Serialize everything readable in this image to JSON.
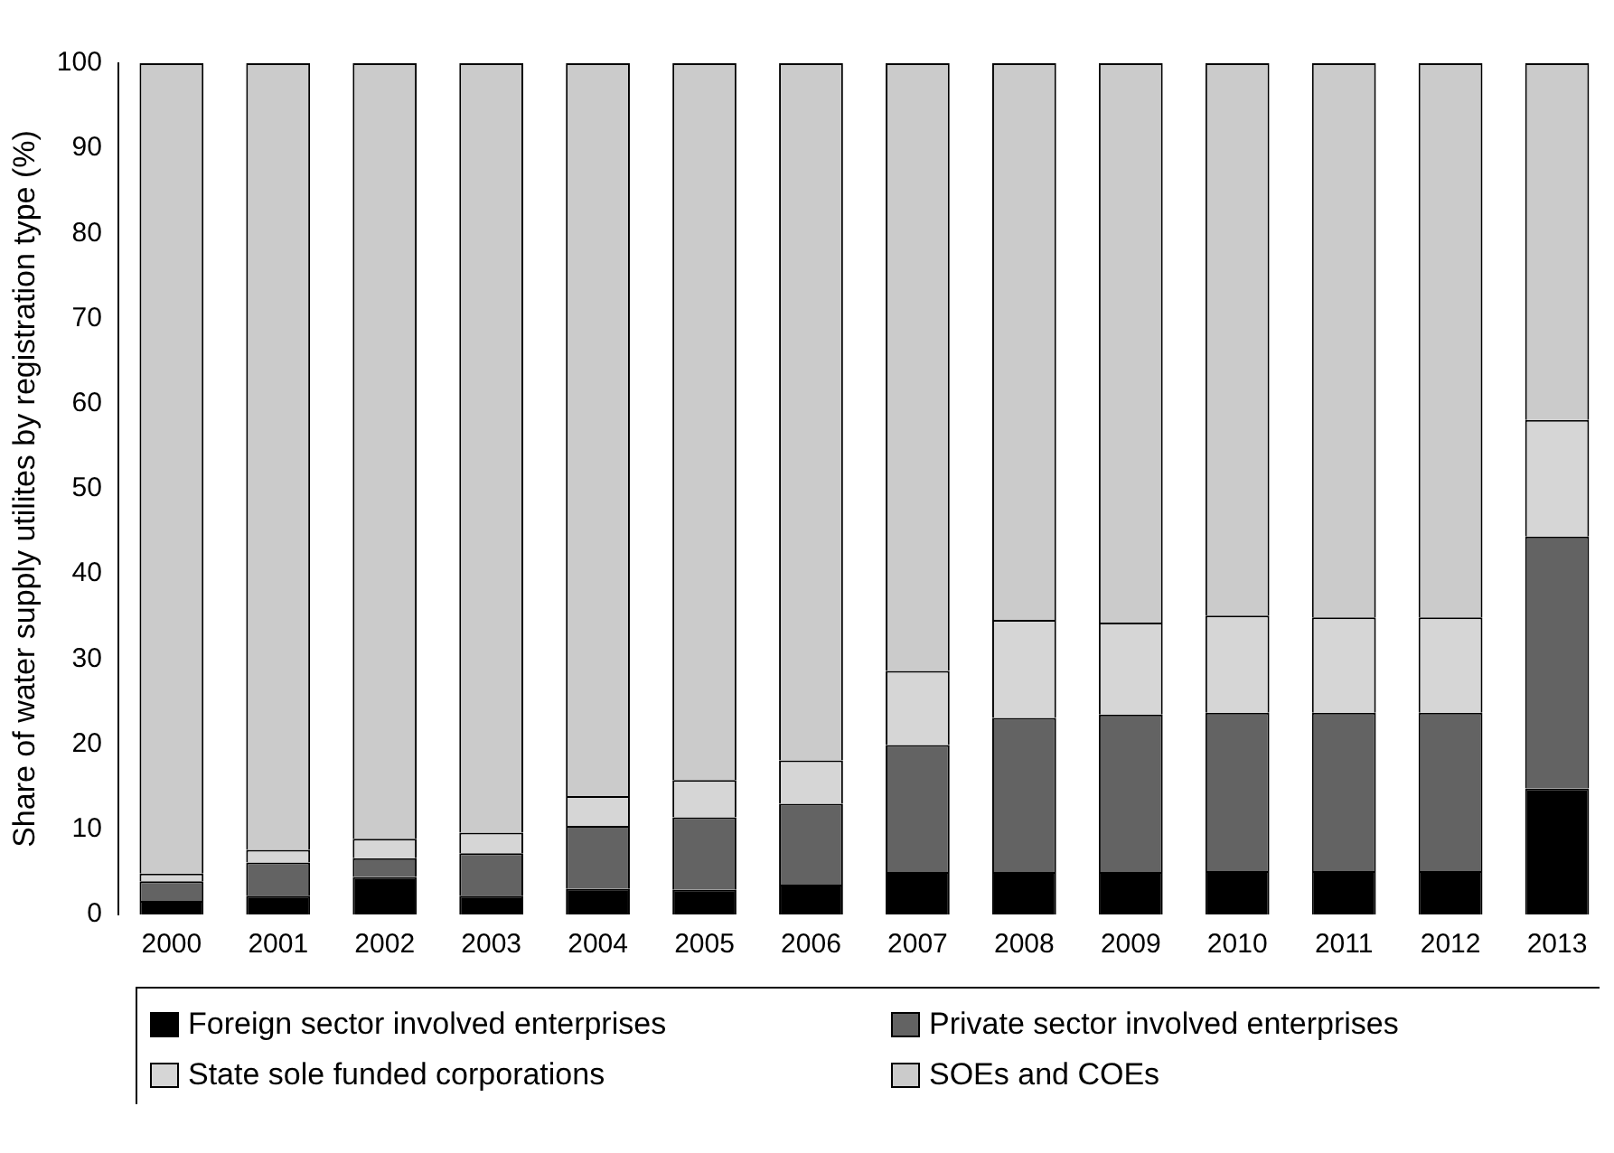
{
  "chart_data": {
    "type": "bar",
    "stacked": true,
    "ylabel": "Share of water supply utilites by registration type (%)",
    "categories": [
      "2000",
      "2001",
      "2002",
      "2003",
      "2004",
      "2005",
      "2006",
      "2007",
      "2008",
      "2009",
      "2010",
      "2011",
      "2012",
      "2013"
    ],
    "series": [
      {
        "name": "Foreign sector involved enterprises",
        "color": "#000000",
        "values": [
          1.6,
          2.2,
          4.4,
          2.2,
          3.0,
          2.9,
          3.5,
          5.0,
          5.0,
          5.0,
          5.1,
          5.1,
          5.1,
          14.8
        ]
      },
      {
        "name": "Private sector involved enterprises",
        "color": "#636363",
        "values": [
          2.3,
          3.9,
          2.2,
          5.0,
          7.4,
          8.5,
          9.5,
          14.9,
          18.1,
          18.5,
          18.6,
          18.6,
          18.6,
          29.6
        ]
      },
      {
        "name": "State sole funded corporations",
        "color": "#d6d6d6",
        "values": [
          0.9,
          1.5,
          2.3,
          2.4,
          3.5,
          4.4,
          5.1,
          8.7,
          11.5,
          10.8,
          11.4,
          11.2,
          11.2,
          13.7
        ]
      },
      {
        "name": "SOEs and COEs",
        "color": "#cbcbcb",
        "values": [
          95.2,
          92.4,
          91.1,
          90.4,
          86.1,
          84.2,
          81.9,
          71.4,
          65.4,
          65.7,
          64.9,
          65.1,
          65.1,
          41.9
        ]
      }
    ],
    "ylim": [
      0,
      100
    ],
    "yticks": [
      0,
      10,
      20,
      30,
      40,
      50,
      60,
      70,
      80,
      90,
      100
    ],
    "grid": false,
    "legend": "bottom"
  }
}
